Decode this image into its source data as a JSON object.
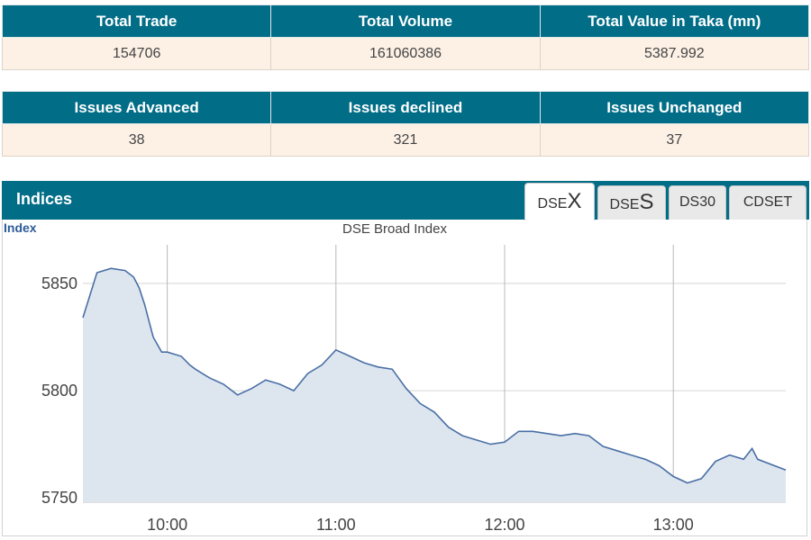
{
  "summary_top": {
    "headers": [
      "Total Trade",
      "Total Volume",
      "Total Value in Taka (mn)"
    ],
    "values": [
      "154706",
      "161060386",
      "5387.992"
    ]
  },
  "summary_issues": {
    "headers": [
      "Issues Advanced",
      "Issues declined",
      "Issues Unchanged"
    ],
    "values": [
      "38",
      "321",
      "37"
    ]
  },
  "indices": {
    "title": "Indices",
    "tabs": [
      {
        "prefix": "DSE",
        "suffix": "X",
        "active": true
      },
      {
        "prefix": "DSE",
        "suffix": "S",
        "active": false
      },
      {
        "prefix": "DS30",
        "suffix": "",
        "active": false
      },
      {
        "prefix": "CDSET",
        "suffix": "",
        "active": false
      }
    ]
  },
  "colors": {
    "header": "#016d87",
    "cell": "#fdf1e6",
    "line": "#4a6fa5",
    "area": "#dde6ef"
  },
  "chart_data": {
    "type": "area",
    "title": "DSE Broad Index",
    "ylabel": "Index",
    "xlabel": "",
    "x_ticks": [
      "10:00",
      "11:00",
      "12:00",
      "13:00"
    ],
    "y_ticks": [
      5750,
      5800,
      5850
    ],
    "ylim": [
      5748,
      5868
    ],
    "xlim": [
      "09:30",
      "13:40"
    ],
    "grid": true,
    "series": [
      {
        "x": [
          "09:30",
          "09:35",
          "09:40",
          "09:45",
          "09:48",
          "09:50",
          "09:52",
          "09:55",
          "09:58",
          "10:00",
          "10:05",
          "10:08",
          "10:10",
          "10:15",
          "10:20",
          "10:25",
          "10:30",
          "10:35",
          "10:40",
          "10:45",
          "10:50",
          "10:55",
          "11:00",
          "11:05",
          "11:10",
          "11:15",
          "11:20",
          "11:25",
          "11:30",
          "11:35",
          "11:40",
          "11:45",
          "11:50",
          "11:55",
          "12:00",
          "12:05",
          "12:10",
          "12:15",
          "12:20",
          "12:25",
          "12:30",
          "12:35",
          "12:40",
          "12:45",
          "12:50",
          "12:55",
          "13:00",
          "13:05",
          "13:10",
          "13:15",
          "13:20",
          "13:25",
          "13:28",
          "13:30",
          "13:40"
        ],
        "values": [
          5834,
          5855,
          5857,
          5856,
          5853,
          5848,
          5840,
          5825,
          5818,
          5818,
          5816,
          5812,
          5810,
          5806,
          5803,
          5798,
          5801,
          5805,
          5803,
          5800,
          5808,
          5812,
          5819,
          5816,
          5813,
          5811,
          5810,
          5801,
          5794,
          5790,
          5783,
          5779,
          5777,
          5775,
          5776,
          5781,
          5781,
          5780,
          5779,
          5780,
          5779,
          5774,
          5772,
          5770,
          5768,
          5765,
          5760,
          5757,
          5759,
          5767,
          5770,
          5768,
          5773,
          5768,
          5763
        ]
      }
    ]
  }
}
